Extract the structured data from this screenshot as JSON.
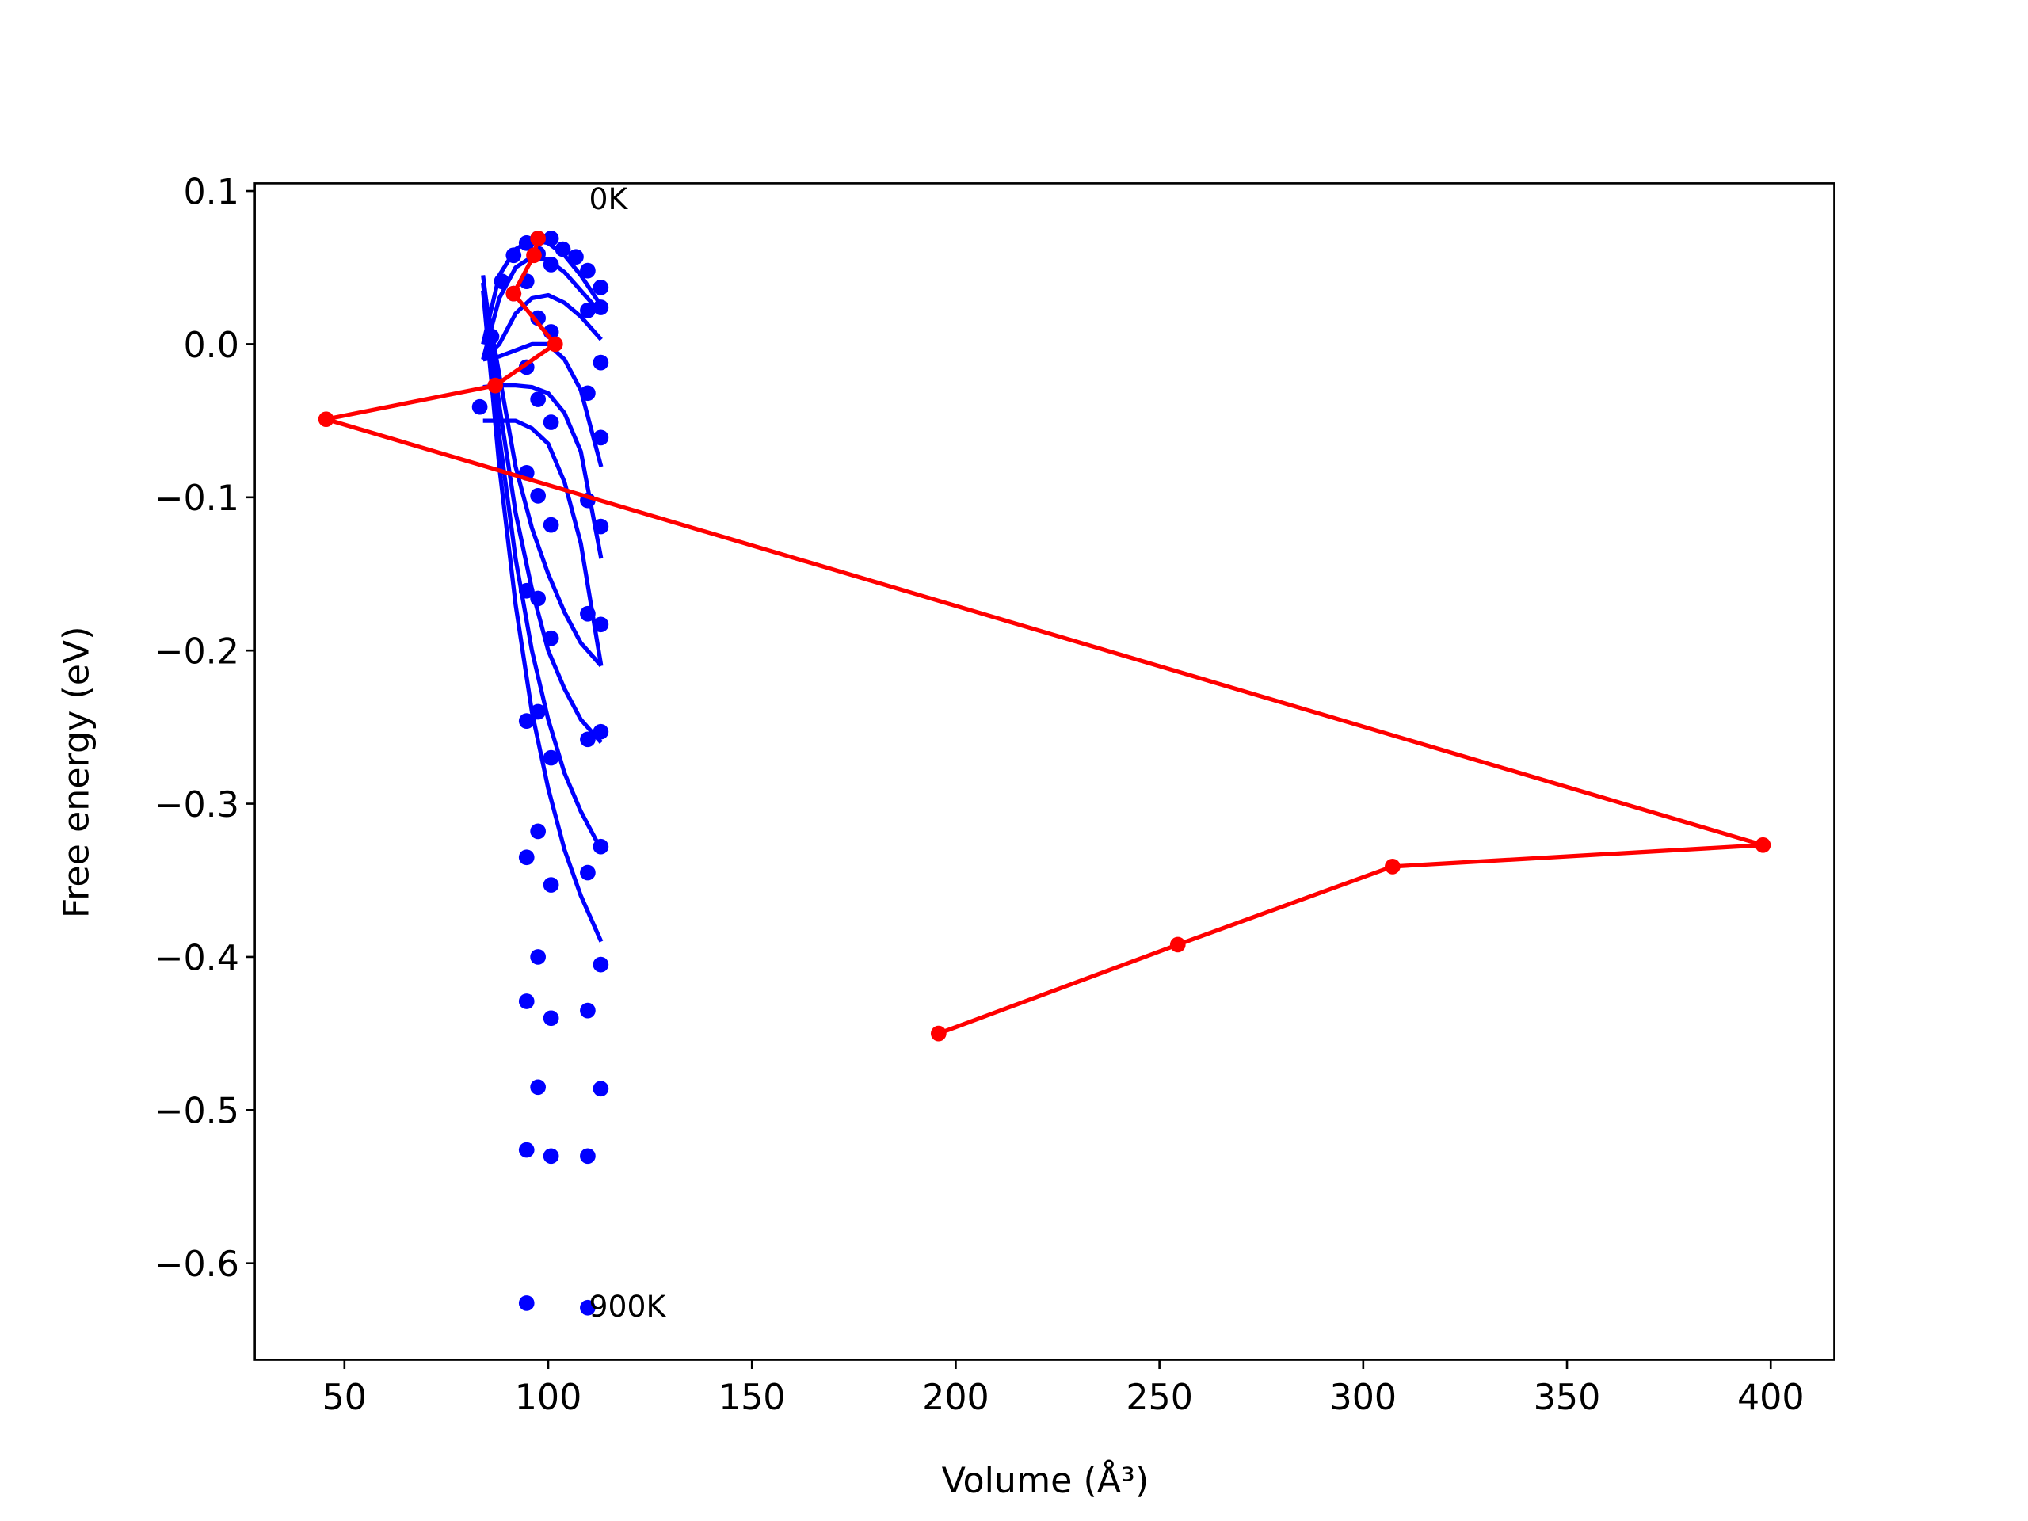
{
  "chart_data": {
    "type": "line",
    "xlabel": "Volume (Å³)",
    "ylabel": "Free energy (eV)",
    "xlim": [
      28.0,
      415.6
    ],
    "ylim": [
      -0.663,
      0.105
    ],
    "xticks": [
      50,
      100,
      150,
      200,
      250,
      300,
      350,
      400
    ],
    "yticks": [
      0.1,
      {
        "value": 0.0,
        "label": "0.0"
      },
      {
        "value": -0.1,
        "label": "−0.1"
      },
      {
        "value": -0.2,
        "label": "−0.2"
      },
      {
        "value": -0.3,
        "label": "−0.3"
      },
      {
        "value": -0.4,
        "label": "−0.4"
      },
      {
        "value": -0.5,
        "label": "−0.5"
      },
      {
        "value": -0.6,
        "label": "−0.6"
      }
    ],
    "annotations": [
      {
        "text": "0K",
        "x": 110,
        "y": 0.095
      },
      {
        "text": "900K",
        "x": 110,
        "y": -0.628
      }
    ],
    "series": [
      {
        "type": "scatter",
        "color": "#0000ff",
        "x": [
          91.5,
          94.7,
          97.5,
          100.7,
          103.6,
          106.8,
          109.7,
          112.9,
          112.9,
          109.7,
          100.7,
          97.5,
          94.7,
          88.6,
          91.5,
          86.1,
          97.5,
          100.7,
          112.9,
          94.7,
          109.7,
          97.5,
          83.2,
          100.7,
          112.9,
          94.7,
          97.5,
          109.7,
          100.7,
          112.9,
          94.7,
          97.5,
          109.7,
          100.7,
          112.9,
          94.7,
          97.5,
          109.7,
          100.7,
          112.9,
          94.7,
          97.5,
          109.7,
          100.7,
          112.9,
          97.5,
          94.7,
          109.7,
          100.7,
          112.9,
          97.5,
          94.7,
          109.7,
          100.7,
          112.9,
          94.7,
          109.7
        ],
        "values": [
          0.058,
          0.066,
          0.069,
          0.069,
          0.062,
          0.057,
          0.048,
          0.037,
          0.024,
          0.022,
          0.052,
          0.059,
          0.041,
          0.041,
          0.033,
          0.005,
          0.017,
          0.008,
          -0.012,
          -0.015,
          -0.032,
          -0.036,
          -0.041,
          -0.051,
          -0.061,
          -0.084,
          -0.099,
          -0.102,
          -0.118,
          -0.119,
          -0.161,
          -0.166,
          -0.176,
          -0.192,
          -0.183,
          -0.246,
          -0.24,
          -0.258,
          -0.27,
          -0.253,
          -0.335,
          -0.318,
          -0.345,
          -0.353,
          -0.328,
          -0.4,
          -0.429,
          -0.435,
          -0.44,
          -0.405,
          -0.485,
          -0.526,
          -0.53,
          -0.53,
          -0.486,
          -0.626,
          -0.629
        ]
      },
      {
        "type": "line",
        "color": "#0000ff",
        "x": [
          84,
          88,
          92,
          96,
          100,
          104,
          108,
          113
        ],
        "values": [
          0.0,
          0.045,
          0.062,
          0.068,
          0.066,
          0.058,
          0.045,
          0.025
        ]
      },
      {
        "type": "line",
        "color": "#0000ff",
        "x": [
          84,
          88,
          92,
          96,
          100,
          104,
          108,
          113
        ],
        "values": [
          -0.01,
          0.03,
          0.05,
          0.057,
          0.055,
          0.047,
          0.035,
          0.02
        ]
      },
      {
        "type": "line",
        "color": "#0000ff",
        "x": [
          84,
          88,
          92,
          96,
          100,
          104,
          108,
          113
        ],
        "values": [
          -0.01,
          0.0,
          0.02,
          0.03,
          0.032,
          0.027,
          0.018,
          0.003
        ]
      },
      {
        "type": "line",
        "color": "#0000ff",
        "x": [
          84,
          88,
          92,
          96,
          100,
          104,
          108,
          113
        ],
        "values": [
          -0.01,
          -0.008,
          -0.004,
          0.0,
          0.0,
          -0.01,
          -0.03,
          -0.08
        ]
      },
      {
        "type": "line",
        "color": "#0000ff",
        "x": [
          84,
          88,
          92,
          96,
          100,
          104,
          108,
          113
        ],
        "values": [
          -0.028,
          -0.027,
          -0.027,
          -0.028,
          -0.032,
          -0.045,
          -0.07,
          -0.14
        ]
      },
      {
        "type": "line",
        "color": "#0000ff",
        "x": [
          84,
          88,
          92,
          96,
          100,
          104,
          108,
          113
        ],
        "values": [
          -0.05,
          -0.05,
          -0.05,
          -0.055,
          -0.065,
          -0.09,
          -0.13,
          -0.21
        ]
      },
      {
        "type": "line",
        "color": "#0000ff",
        "x": [
          84,
          88,
          92,
          96,
          100,
          104,
          108,
          113
        ],
        "values": [
          0.04,
          -0.02,
          -0.08,
          -0.12,
          -0.15,
          -0.175,
          -0.195,
          -0.21
        ]
      },
      {
        "type": "line",
        "color": "#0000ff",
        "x": [
          84,
          88,
          92,
          96,
          100,
          104,
          108,
          113
        ],
        "values": [
          0.045,
          -0.04,
          -0.11,
          -0.16,
          -0.2,
          -0.225,
          -0.245,
          -0.26
        ]
      },
      {
        "type": "line",
        "color": "#0000ff",
        "x": [
          84,
          88,
          92,
          96,
          100,
          104,
          108,
          113
        ],
        "values": [
          0.04,
          -0.06,
          -0.14,
          -0.2,
          -0.245,
          -0.28,
          -0.305,
          -0.33
        ]
      },
      {
        "type": "line",
        "color": "#0000ff",
        "x": [
          84,
          88,
          92,
          96,
          100,
          104,
          108,
          113
        ],
        "values": [
          0.035,
          -0.08,
          -0.17,
          -0.24,
          -0.29,
          -0.33,
          -0.36,
          -0.39
        ]
      },
      {
        "type": "line",
        "markers": true,
        "color": "#ff0000",
        "x": [
          97.5,
          96.5,
          91.5,
          101.7,
          87.0,
          45.5,
          398.1,
          307.2,
          254.5,
          195.8
        ],
        "values": [
          0.069,
          0.058,
          0.033,
          0.0,
          -0.027,
          -0.049,
          -0.327,
          -0.341,
          -0.392,
          -0.45
        ]
      }
    ]
  }
}
